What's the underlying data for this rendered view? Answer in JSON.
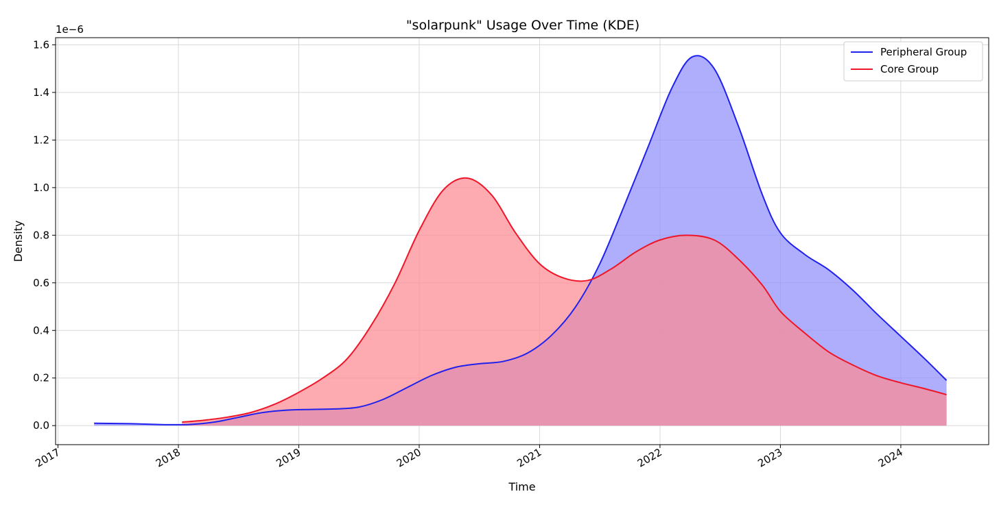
{
  "chart_data": {
    "type": "area",
    "title": "\"solarpunk\" Usage Over Time (KDE)",
    "xlabel": "Time",
    "ylabel": "Density",
    "y_offset_label": "1e−6",
    "x_ticks": [
      "2017",
      "2018",
      "2019",
      "2020",
      "2021",
      "2022",
      "2023",
      "2024"
    ],
    "y_ticks": [
      "0.0",
      "0.2",
      "0.4",
      "0.6",
      "0.8",
      "1.0",
      "1.2",
      "1.4",
      "1.6"
    ],
    "xlim": [
      2016.98,
      2024.73
    ],
    "ylim": [
      -0.08,
      1.63
    ],
    "grid": true,
    "legend_position": "top-right",
    "series": [
      {
        "name": "Peripheral Group",
        "line_color": "#2020ee",
        "fill_color": "#8f8ffb",
        "x": [
          2017.3,
          2017.6,
          2017.9,
          2018.1,
          2018.3,
          2018.5,
          2018.7,
          2018.9,
          2019.1,
          2019.3,
          2019.5,
          2019.7,
          2019.9,
          2020.1,
          2020.3,
          2020.5,
          2020.7,
          2020.9,
          2021.1,
          2021.3,
          2021.5,
          2021.7,
          2021.9,
          2022.1,
          2022.27,
          2022.45,
          2022.65,
          2022.85,
          2023.0,
          2023.2,
          2023.4,
          2023.6,
          2023.8,
          2024.0,
          2024.2,
          2024.38
        ],
        "values": [
          0.01,
          0.008,
          0.004,
          0.005,
          0.015,
          0.035,
          0.055,
          0.065,
          0.068,
          0.07,
          0.078,
          0.11,
          0.16,
          0.21,
          0.245,
          0.26,
          0.27,
          0.305,
          0.38,
          0.5,
          0.68,
          0.92,
          1.17,
          1.42,
          1.55,
          1.5,
          1.26,
          0.97,
          0.81,
          0.72,
          0.655,
          0.57,
          0.47,
          0.375,
          0.28,
          0.19
        ]
      },
      {
        "name": "Core Group",
        "line_color": "#ee1528",
        "fill_color": "#fc8a92",
        "x": [
          2018.03,
          2018.2,
          2018.4,
          2018.6,
          2018.8,
          2019.0,
          2019.2,
          2019.4,
          2019.6,
          2019.8,
          2020.0,
          2020.2,
          2020.4,
          2020.6,
          2020.8,
          2021.0,
          2021.2,
          2021.4,
          2021.6,
          2021.8,
          2022.0,
          2022.22,
          2022.45,
          2022.65,
          2022.85,
          2023.0,
          2023.2,
          2023.4,
          2023.6,
          2023.8,
          2024.0,
          2024.2,
          2024.38
        ],
        "values": [
          0.015,
          0.022,
          0.035,
          0.055,
          0.09,
          0.14,
          0.2,
          0.28,
          0.42,
          0.6,
          0.82,
          0.99,
          1.04,
          0.97,
          0.81,
          0.68,
          0.62,
          0.61,
          0.66,
          0.73,
          0.78,
          0.8,
          0.78,
          0.7,
          0.59,
          0.48,
          0.39,
          0.31,
          0.255,
          0.21,
          0.18,
          0.155,
          0.13
        ]
      }
    ]
  }
}
